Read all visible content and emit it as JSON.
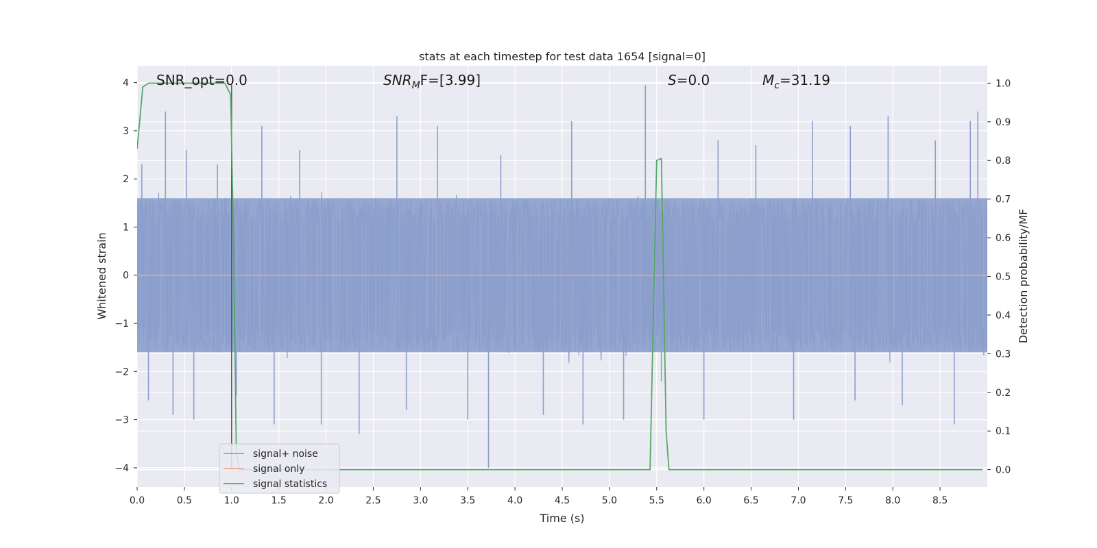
{
  "chart_data": {
    "type": "line",
    "title": "stats at each timestep for test data 1654 [signal=0]",
    "xlabel": "Time (s)",
    "ylabel": "Whitened strain",
    "y2label": "Detection probability/MF",
    "xlim": [
      0.0,
      9.0
    ],
    "ylim": [
      -4.4,
      4.35
    ],
    "y2lim": [
      -0.045,
      1.045
    ],
    "xticks": [
      "0.0",
      "0.5",
      "1.0",
      "1.5",
      "2.0",
      "2.5",
      "3.0",
      "3.5",
      "4.0",
      "4.5",
      "5.0",
      "5.5",
      "6.0",
      "6.5",
      "7.0",
      "7.5",
      "8.0",
      "8.5"
    ],
    "xtick_values": [
      0.0,
      0.5,
      1.0,
      1.5,
      2.0,
      2.5,
      3.0,
      3.5,
      4.0,
      4.5,
      5.0,
      5.5,
      6.0,
      6.5,
      7.0,
      7.5,
      8.0,
      8.5
    ],
    "yticks": [
      "4",
      "3",
      "2",
      "1",
      "0",
      "−1",
      "−2",
      "−3",
      "−4"
    ],
    "ytick_values": [
      4,
      3,
      2,
      1,
      0,
      -1,
      -2,
      -3,
      -4
    ],
    "y2ticks": [
      "1.0",
      "0.9",
      "0.8",
      "0.7",
      "0.6",
      "0.5",
      "0.4",
      "0.3",
      "0.2",
      "0.1",
      "0.0"
    ],
    "y2tick_values": [
      1.0,
      0.9,
      0.8,
      0.7,
      0.6,
      0.5,
      0.4,
      0.3,
      0.2,
      0.1,
      0.0
    ],
    "grid": true,
    "legend_position": "lower-left",
    "annotations": {
      "snr_opt": "SNR_opt=0.0",
      "snr_mf_main": "SNR",
      "snr_mf_sub": "M",
      "snr_mf_rest": "F=[3.99]",
      "s_italic": "S",
      "s_rest": "=0.0",
      "mc_main": "M",
      "mc_sub": "c",
      "mc_rest": "=31.19"
    },
    "marker_line_x": 1.0,
    "series": [
      {
        "name": "signal+ noise",
        "axis": "left",
        "color": "#8c9fcc",
        "noise_band": [
          -1.6,
          1.6
        ],
        "peaks": [
          {
            "x": 0.05,
            "y": 2.3
          },
          {
            "x": 0.12,
            "y": -2.6
          },
          {
            "x": 0.3,
            "y": 3.4
          },
          {
            "x": 0.38,
            "y": -2.9
          },
          {
            "x": 0.52,
            "y": 2.6
          },
          {
            "x": 0.6,
            "y": -3.0
          },
          {
            "x": 0.85,
            "y": 2.3
          },
          {
            "x": 1.05,
            "y": -2.5
          },
          {
            "x": 1.32,
            "y": 3.1
          },
          {
            "x": 1.45,
            "y": -3.1
          },
          {
            "x": 1.72,
            "y": 2.6
          },
          {
            "x": 1.95,
            "y": -3.1
          },
          {
            "x": 2.35,
            "y": -3.3
          },
          {
            "x": 2.75,
            "y": 3.3
          },
          {
            "x": 2.85,
            "y": -2.8
          },
          {
            "x": 3.18,
            "y": 3.1
          },
          {
            "x": 3.5,
            "y": -3.0
          },
          {
            "x": 3.72,
            "y": -4.0
          },
          {
            "x": 3.85,
            "y": 2.5
          },
          {
            "x": 4.3,
            "y": -2.9
          },
          {
            "x": 4.6,
            "y": 3.2
          },
          {
            "x": 4.72,
            "y": -3.1
          },
          {
            "x": 5.15,
            "y": -3.0
          },
          {
            "x": 5.38,
            "y": 3.95
          },
          {
            "x": 5.55,
            "y": -2.2
          },
          {
            "x": 6.0,
            "y": -3.0
          },
          {
            "x": 6.15,
            "y": 2.8
          },
          {
            "x": 6.55,
            "y": 2.7
          },
          {
            "x": 6.95,
            "y": -3.0
          },
          {
            "x": 7.15,
            "y": 3.2
          },
          {
            "x": 7.55,
            "y": 3.1
          },
          {
            "x": 7.6,
            "y": -2.6
          },
          {
            "x": 7.95,
            "y": 3.3
          },
          {
            "x": 8.1,
            "y": -2.7
          },
          {
            "x": 8.45,
            "y": 2.8
          },
          {
            "x": 8.65,
            "y": -3.1
          },
          {
            "x": 8.82,
            "y": 3.2
          },
          {
            "x": 8.9,
            "y": 3.4
          }
        ]
      },
      {
        "name": "signal only",
        "axis": "left",
        "color": "#e8a98a",
        "x": [
          0.0,
          9.0
        ],
        "y": [
          0.0,
          0.0
        ]
      },
      {
        "name": "signal statistics",
        "axis": "right",
        "color": "#55a868",
        "x": [
          0.0,
          0.06,
          0.12,
          0.2,
          0.4,
          0.6,
          0.8,
          0.93,
          0.99,
          1.02,
          1.05,
          1.08,
          1.2,
          2.0,
          3.0,
          4.0,
          5.0,
          5.38,
          5.43,
          5.5,
          5.55,
          5.6,
          5.63,
          5.66,
          6.0,
          7.0,
          8.0,
          8.95
        ],
        "y": [
          0.83,
          0.99,
          1.0,
          1.0,
          1.0,
          1.0,
          1.0,
          1.0,
          0.97,
          0.6,
          0.05,
          0.0,
          0.0,
          0.0,
          0.0,
          0.0,
          0.0,
          0.0,
          0.0,
          0.8,
          0.805,
          0.1,
          0.0,
          0.0,
          0.0,
          0.0,
          0.0,
          0.0
        ]
      }
    ]
  }
}
